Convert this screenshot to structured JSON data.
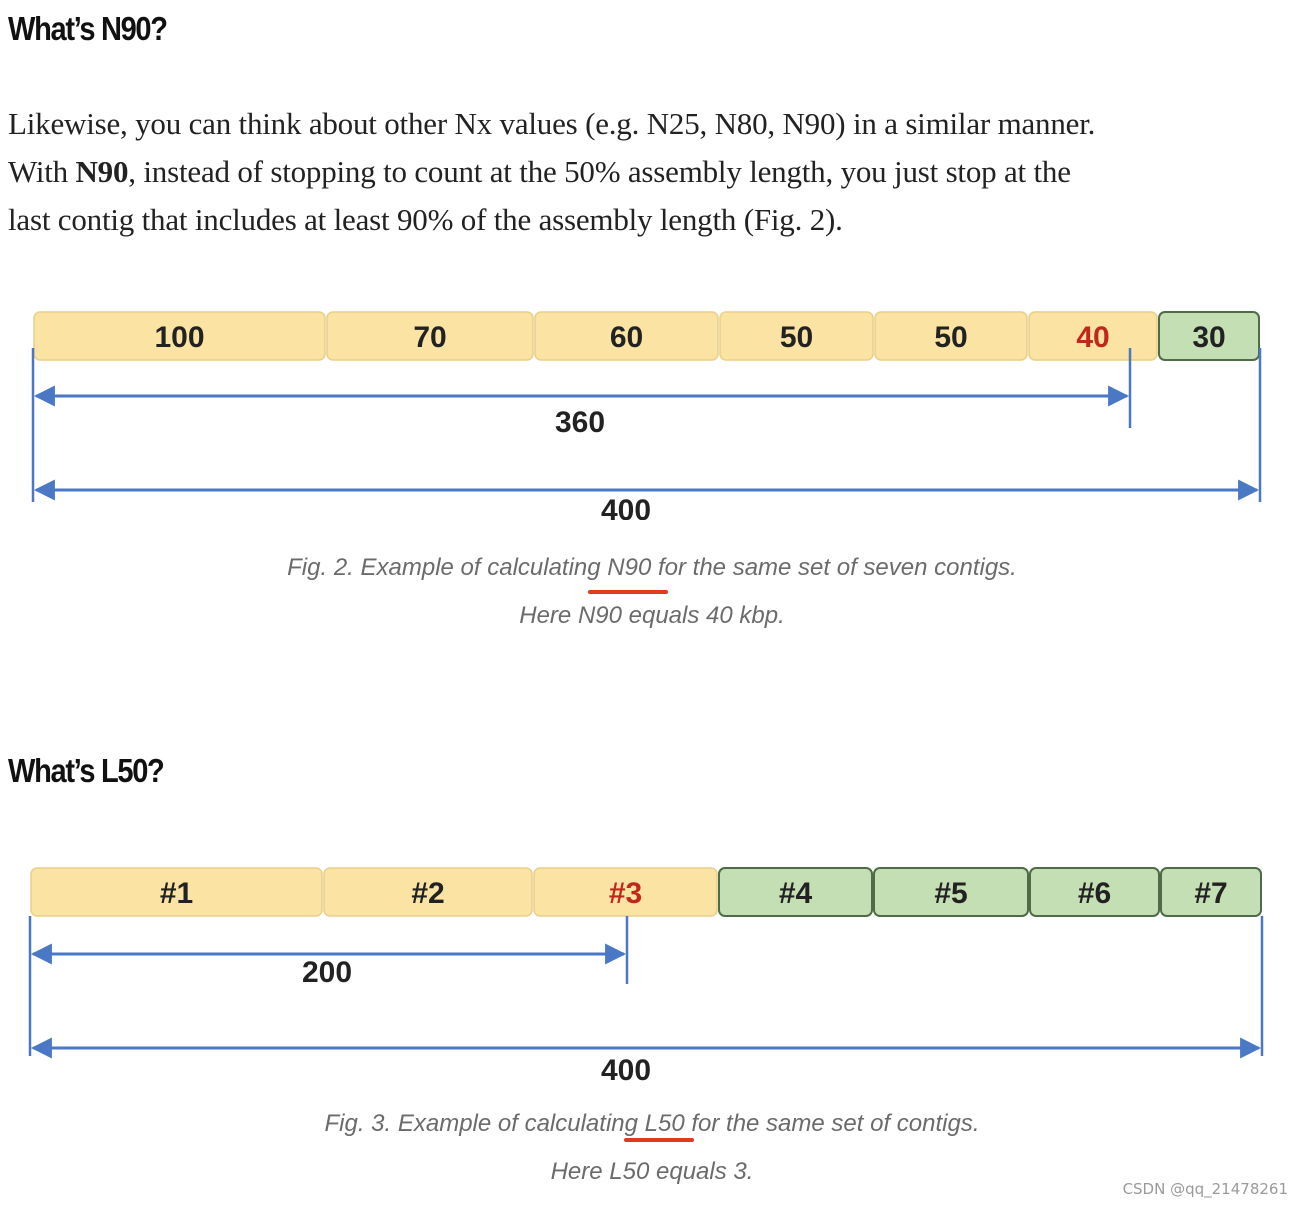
{
  "section1": {
    "heading": "What’s N90?",
    "paragraph": {
      "line1": "Likewise, you can think about other Nx values (e.g. N25, N80, N90) in a similar manner.",
      "line2_pre": "With ",
      "line2_bold": "N90",
      "line2_post": ", instead of stopping to count at the 50% assembly length, you just stop at the",
      "line3": "last contig that includes at least 90% of the assembly length (Fig. 2)."
    }
  },
  "figure2": {
    "segments": [
      {
        "label": "100",
        "value": 100,
        "fill": "#fbe3a3",
        "text_color": "#222222"
      },
      {
        "label": "70",
        "value": 70,
        "fill": "#fbe3a3",
        "text_color": "#222222"
      },
      {
        "label": "60",
        "value": 60,
        "fill": "#fbe3a3",
        "text_color": "#222222"
      },
      {
        "label": "50",
        "value": 50,
        "fill": "#fbe3a3",
        "text_color": "#222222"
      },
      {
        "label": "50",
        "value": 50,
        "fill": "#fbe3a3",
        "text_color": "#222222"
      },
      {
        "label": "40",
        "value": 40,
        "fill": "#fbe3a3",
        "text_color": "#c0281c"
      },
      {
        "label": "30",
        "value": 30,
        "fill": "#c5dfb4",
        "text_color": "#222222"
      }
    ],
    "arrow_partial_label": "360",
    "arrow_total_label": "400",
    "caption_line1": "Fig. 2. Example of calculating N90 for the same set of seven contigs.",
    "caption_line2": "Here N90 equals 40 kbp."
  },
  "section2": {
    "heading": "What’s L50?"
  },
  "figure3": {
    "segments": [
      {
        "label": "#1",
        "fill": "#fbe3a3",
        "text_color": "#222222"
      },
      {
        "label": "#2",
        "fill": "#fbe3a3",
        "text_color": "#222222"
      },
      {
        "label": "#3",
        "fill": "#fbe3a3",
        "text_color": "#c0281c"
      },
      {
        "label": "#4",
        "fill": "#c5dfb4",
        "text_color": "#222222"
      },
      {
        "label": "#5",
        "fill": "#c5dfb4",
        "text_color": "#222222"
      },
      {
        "label": "#6",
        "fill": "#c5dfb4",
        "text_color": "#222222"
      },
      {
        "label": "#7",
        "fill": "#c5dfb4",
        "text_color": "#222222"
      }
    ],
    "arrow_partial_label": "200",
    "arrow_total_label": "400",
    "caption_line1": "Fig. 3. Example of calculating L50 for the same set of contigs.",
    "caption_line2": "Here L50 equals 3."
  },
  "colors": {
    "yellow_fill": "#fbe3a3",
    "green_fill": "#c5dfb4",
    "highlight_red": "#c0281c",
    "arrow_blue": "#4a78c4",
    "underline_red": "#e23a1e"
  },
  "watermark": "CSDN @qq_21478261"
}
